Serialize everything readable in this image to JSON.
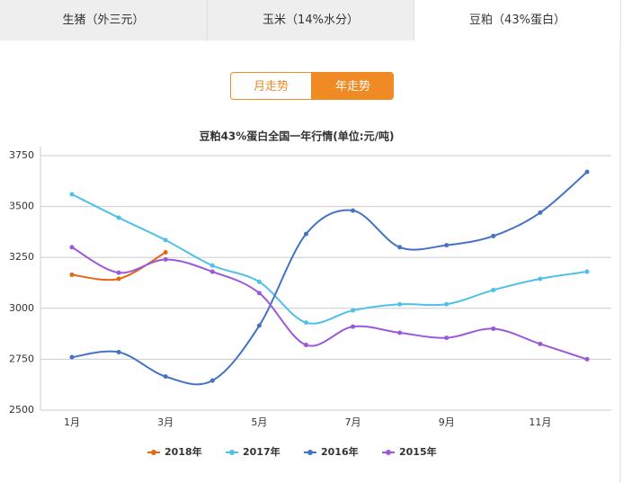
{
  "tabs": [
    "生猪（外三元）",
    "玉米（14%水分）",
    "豆粕（43%蛋白）"
  ],
  "buttons": [
    "月走势",
    "年走势"
  ],
  "chart_data": {
    "type": "line",
    "title": "豆粕43%蛋白全国一年行情(单位:元/吨)",
    "categories": [
      "1月",
      null,
      "3月",
      null,
      "5月",
      null,
      "7月",
      null,
      "9月",
      null,
      "11月",
      null
    ],
    "series": [
      {
        "name": "2018年",
        "color": "#e8660f",
        "values": [
          3165,
          3145,
          3275,
          null,
          null,
          null,
          null,
          null,
          null,
          null,
          null,
          null
        ]
      },
      {
        "name": "2017年",
        "color": "#4fc0e8",
        "values": [
          3560,
          3445,
          3335,
          3210,
          3130,
          2930,
          2990,
          3020,
          3020,
          3090,
          3145,
          3180
        ]
      },
      {
        "name": "2016年",
        "color": "#4472c4",
        "values": [
          2760,
          2785,
          2665,
          2645,
          2915,
          3365,
          3480,
          3300,
          3310,
          3355,
          3470,
          3670
        ]
      },
      {
        "name": "2015年",
        "color": "#9b59d8",
        "values": [
          3300,
          3175,
          3240,
          3180,
          3075,
          2820,
          2910,
          2880,
          2855,
          2900,
          2825,
          2750
        ]
      }
    ],
    "ylim": [
      2500,
      3750
    ],
    "yticks": [
      2500,
      2750,
      3000,
      3250,
      3500,
      3750
    ],
    "grid": true,
    "legend": "bottom"
  }
}
